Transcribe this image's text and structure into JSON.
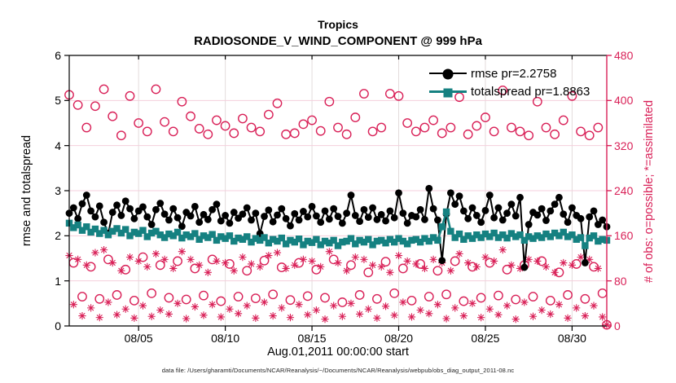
{
  "title": {
    "line1": "Tropics",
    "line2": "RADIOSONDE_V_WIND_COMPONENT @ 999 hPa"
  },
  "axes": {
    "left_label": "rmse and totalspread",
    "right_label": "# of obs: o=possible; *=assimilated",
    "x_label": "Aug.01,2011 00:00:00 start",
    "left_ticks": [
      0,
      1,
      2,
      3,
      4,
      5,
      6
    ],
    "right_ticks": [
      0,
      80,
      160,
      240,
      320,
      400,
      480
    ],
    "x_tick_labels": [
      "08/05",
      "08/10",
      "08/15",
      "08/20",
      "08/25",
      "08/30"
    ],
    "x_tick_days": [
      4,
      9,
      14,
      19,
      24,
      29
    ]
  },
  "legend": [
    {
      "label": "rmse pr=2.2758",
      "marker": "filled-circle",
      "color": "#000000"
    },
    {
      "label": "totalspread pr=1.8863",
      "marker": "filled-square",
      "color": "#158181"
    }
  ],
  "footer": {
    "datafile": "data file: /Users/gharamti/Documents/NCAR/Reanalysis/~/Documents/NCAR/Reanalysis/webpub/obs_diag_output_2011-08.nc"
  },
  "colors": {
    "rmse": "#000000",
    "totalspread": "#158181",
    "obs_pink": "#d92158",
    "grid_h": "#f4cfdc",
    "grid_v": "#e3dcdc"
  },
  "chart_data": {
    "type": "line",
    "title": "Tropics — RADIOSONDE_V_WIND_COMPONENT @ 999 hPa",
    "xlabel": "Aug.01,2011 00:00:00 start",
    "ylabel_left": "rmse and totalspread",
    "ylabel_right": "# of obs: o=possible; *=assimilated",
    "x_start_day": 0,
    "x_end_day": 31,
    "points_per_day": 4,
    "ylim_left": [
      0,
      6
    ],
    "ylim_right": [
      0,
      480
    ],
    "grid": true,
    "legend_position": "top-right-inside",
    "series": [
      {
        "name": "rmse pr=2.2758",
        "axis": "left",
        "marker": "filled-circle",
        "line": true,
        "color": "#000000",
        "values": [
          2.5,
          2.62,
          2.38,
          2.71,
          2.9,
          2.55,
          2.42,
          2.66,
          2.3,
          2.05,
          2.52,
          2.68,
          2.45,
          2.77,
          2.6,
          2.38,
          2.55,
          2.64,
          2.42,
          2.25,
          2.58,
          2.72,
          2.48,
          2.35,
          2.6,
          2.4,
          2.21,
          2.52,
          2.44,
          2.65,
          2.3,
          2.47,
          2.36,
          2.58,
          2.7,
          2.33,
          2.45,
          2.28,
          2.52,
          2.39,
          2.48,
          2.62,
          2.35,
          2.5,
          2.05,
          2.43,
          2.57,
          2.31,
          2.46,
          2.6,
          2.38,
          2.22,
          2.49,
          2.35,
          2.54,
          2.42,
          2.65,
          2.44,
          2.3,
          2.55,
          2.37,
          2.6,
          2.43,
          2.28,
          2.5,
          2.9,
          2.45,
          2.32,
          2.58,
          2.41,
          2.62,
          2.36,
          2.47,
          2.33,
          2.55,
          2.4,
          2.95,
          2.5,
          2.28,
          2.45,
          2.42,
          2.58,
          2.36,
          3.05,
          2.6,
          2.35,
          1.45,
          2.48,
          2.95,
          2.7,
          2.88,
          2.55,
          2.38,
          2.62,
          2.45,
          2.3,
          2.56,
          2.9,
          2.4,
          2.62,
          2.35,
          2.5,
          2.7,
          2.44,
          2.85,
          1.3,
          2.25,
          2.52,
          2.46,
          2.6,
          2.34,
          2.55,
          2.7,
          2.85,
          2.48,
          2.3,
          2.62,
          2.45,
          2.38,
          1.4,
          2.42,
          2.55,
          2.25,
          2.35,
          2.2
        ]
      },
      {
        "name": "totalspread pr=1.8863",
        "axis": "left",
        "marker": "filled-square",
        "line": true,
        "color": "#158181",
        "values": [
          2.28,
          2.18,
          2.24,
          2.12,
          2.2,
          2.08,
          2.15,
          2.05,
          2.12,
          2.02,
          2.1,
          2.16,
          2.06,
          2.14,
          2.0,
          2.08,
          2.05,
          2.12,
          1.98,
          2.06,
          2.1,
          2.02,
          1.96,
          2.04,
          2.0,
          2.08,
          1.95,
          2.02,
          1.98,
          2.05,
          1.92,
          2.0,
          1.96,
          2.03,
          1.9,
          1.98,
          1.94,
          2.0,
          1.88,
          1.95,
          1.92,
          1.98,
          1.86,
          1.94,
          1.9,
          1.96,
          1.84,
          1.92,
          1.88,
          1.95,
          1.82,
          1.9,
          1.86,
          1.93,
          1.8,
          1.88,
          1.85,
          1.92,
          1.8,
          1.88,
          1.84,
          1.9,
          1.78,
          1.86,
          1.88,
          1.94,
          1.82,
          1.9,
          1.86,
          1.92,
          1.8,
          1.88,
          1.9,
          1.84,
          1.92,
          1.86,
          1.94,
          1.88,
          1.82,
          1.9,
          1.92,
          1.86,
          1.94,
          1.88,
          1.96,
          1.9,
          2.2,
          2.53,
          2.1,
          1.96,
          2.04,
          1.92,
          2.0,
          1.94,
          2.02,
          1.96,
          2.04,
          1.98,
          2.06,
          1.96,
          2.02,
          1.95,
          2.05,
          1.98,
          2.02,
          1.9,
          1.98,
          1.94,
          2.0,
          1.96,
          2.04,
          1.98,
          2.06,
          2.0,
          2.08,
          1.98,
          2.02,
          1.92,
          1.96,
          1.78,
          1.95,
          2.0,
          1.88,
          1.92,
          1.9
        ]
      },
      {
        "name": "# of obs possible",
        "axis": "right",
        "marker": "open-circle",
        "line": false,
        "color": "#d92158",
        "values": [
          410,
          112,
          392,
          52,
          352,
          105,
          390,
          48,
          420,
          118,
          372,
          55,
          338,
          100,
          408,
          45,
          360,
          122,
          345,
          58,
          420,
          108,
          362,
          50,
          345,
          115,
          398,
          47,
          372,
          102,
          350,
          54,
          340,
          118,
          365,
          44,
          355,
          110,
          342,
          52,
          368,
          98,
          352,
          49,
          345,
          116,
          375,
          56,
          395,
          104,
          340,
          46,
          342,
          112,
          358,
          53,
          365,
          100,
          346,
          50,
          398,
          118,
          352,
          42,
          340,
          108,
          370,
          55,
          412,
          95,
          345,
          48,
          352,
          114,
          412,
          58,
          408,
          102,
          360,
          45,
          345,
          110,
          352,
          52,
          365,
          98,
          342,
          56,
          352,
          115,
          406,
          44,
          340,
          105,
          355,
          50,
          370,
          112,
          345,
          54,
          418,
          100,
          352,
          47,
          345,
          108,
          338,
          52,
          398,
          115,
          352,
          45,
          340,
          95,
          365,
          55,
          408,
          110,
          345,
          48,
          338,
          105,
          352,
          58,
          2
        ]
      },
      {
        "name": "# of obs assimilated",
        "axis": "right",
        "marker": "asterisk",
        "line": false,
        "color": "#d92158",
        "values": [
          125,
          38,
          118,
          18,
          108,
          32,
          130,
          15,
          135,
          42,
          112,
          20,
          98,
          30,
          122,
          14,
          115,
          36,
          105,
          17,
          128,
          28,
          118,
          21,
          102,
          40,
          132,
          13,
          118,
          34,
          108,
          19,
          95,
          38,
          115,
          16,
          112,
          30,
          98,
          22,
          122,
          36,
          110,
          14,
          105,
          42,
          125,
          18,
          130,
          32,
          102,
          15,
          108,
          38,
          118,
          20,
          115,
          28,
          105,
          12,
          132,
          36,
          112,
          17,
          98,
          40,
          122,
          21,
          118,
          30,
          108,
          14,
          105,
          35,
          95,
          19,
          125,
          42,
          115,
          16,
          110,
          28,
          102,
          22,
          118,
          38,
          112,
          13,
          98,
          32,
          128,
          18,
          112,
          40,
          105,
          15,
          122,
          30,
          115,
          20,
          135,
          36,
          108,
          12,
          102,
          42,
          118,
          17,
          115,
          28,
          105,
          21,
          95,
          38,
          112,
          14,
          108,
          32,
          122,
          18,
          118,
          36,
          102,
          16,
          2
        ]
      }
    ]
  }
}
